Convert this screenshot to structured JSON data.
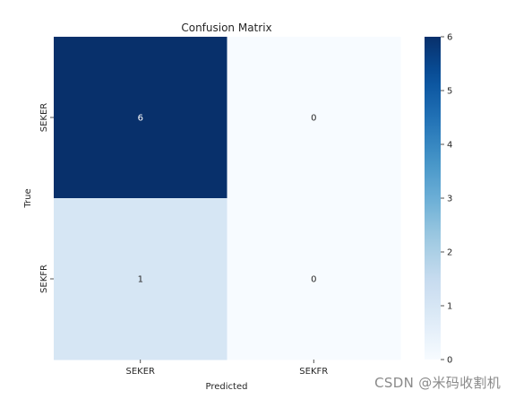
{
  "chart_data": {
    "type": "heatmap",
    "title": "Confusion Matrix",
    "xlabel": "Predicted",
    "ylabel": "True",
    "x_categories": [
      "SEKER",
      "SEKFR"
    ],
    "y_categories": [
      "SEKER",
      "SEKFR"
    ],
    "values": [
      [
        6,
        0
      ],
      [
        1,
        0
      ]
    ],
    "colormap": "Blues",
    "colorbar": {
      "min": 0,
      "max": 6,
      "ticks": [
        0,
        1,
        2,
        3,
        4,
        5,
        6
      ]
    },
    "colors": {
      "low": "#f7fbff",
      "high": "#08306b"
    },
    "grid": false
  },
  "watermark": "CSDN @米码收割机"
}
